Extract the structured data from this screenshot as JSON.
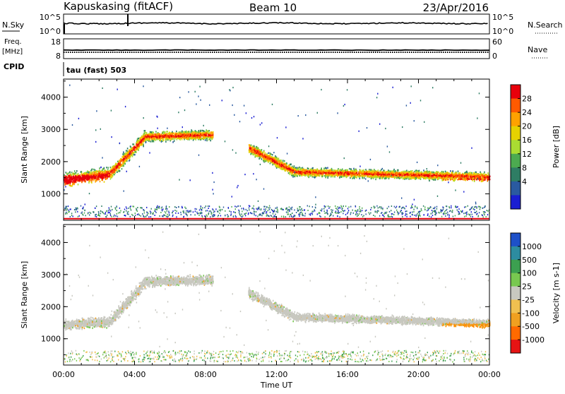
{
  "header": {
    "station": "Kapuskasing (fitACF)",
    "beam": "Beam 10",
    "date": "23/Apr/2016"
  },
  "noise_panel": {
    "left_label": "N.Sky",
    "left_top": "10^5",
    "left_bottom": "10^0",
    "right_top": "10^5",
    "right_bottom": "10^0",
    "right_label": "N.Search"
  },
  "freq_panel": {
    "left_label_1": "Freq.",
    "left_label_2": "[MHz]",
    "left_top": "18",
    "left_bottom": "8",
    "right_top": "60",
    "right_bottom": "0",
    "right_label": "Nave",
    "cpid_label": "CPID",
    "mode_text": "tau (fast) 503"
  },
  "chart_data": [
    {
      "type": "heatmap",
      "title": "Power",
      "ylabel": "Slant Range [km]",
      "ylim": [
        180,
        4560
      ],
      "yticks": [
        "1000",
        "2000",
        "3000",
        "4000"
      ],
      "xlim_hours": [
        0,
        24
      ],
      "colorbar_label": "Power [dB]",
      "colorbar_ticks": [
        "28",
        "24",
        "20",
        "16",
        "12",
        "8",
        "4"
      ],
      "colorbar_colors": [
        "#e8000b",
        "#ff5a00",
        "#ffa200",
        "#e6d200",
        "#aadc32",
        "#4caa50",
        "#2e7d64",
        "#2a5aa0",
        "#1a1ed2"
      ],
      "echo_bands": [
        {
          "start": 0.0,
          "end": 0.6,
          "range_start": 1450,
          "range_end": 1500,
          "width": 300
        },
        {
          "start": 0.6,
          "end": 2.6,
          "range_start": 1500,
          "range_end": 1650,
          "width": 260
        },
        {
          "start": 2.6,
          "end": 4.6,
          "range_start": 1650,
          "range_end": 2800,
          "width": 260
        },
        {
          "start": 4.6,
          "end": 8.4,
          "range_start": 2800,
          "range_end": 2850,
          "width": 200
        },
        {
          "start": 10.4,
          "end": 13.0,
          "range_start": 2450,
          "range_end": 1700,
          "width": 220
        },
        {
          "start": 13.0,
          "end": 24.0,
          "range_start": 1700,
          "range_end": 1550,
          "width": 180
        }
      ]
    },
    {
      "type": "heatmap",
      "title": "Velocity",
      "ylabel": "Slant Range [km]",
      "ylim": [
        180,
        4560
      ],
      "yticks": [
        "1000",
        "2000",
        "3000",
        "4000"
      ],
      "xlim_hours": [
        0,
        24
      ],
      "xticks": [
        "00:00",
        "04:00",
        "08:00",
        "12:00",
        "16:00",
        "20:00",
        "00:00"
      ],
      "xlabel": "Time UT",
      "colorbar_label": "Velocity [m s-1]",
      "colorbar_ticks": [
        "1000",
        "500",
        "100",
        "25",
        "-25",
        "-100",
        "-500",
        "-1000"
      ],
      "colorbar_colors": [
        "#1e50c8",
        "#2d8ca0",
        "#3ca050",
        "#78c850",
        "#c8c8c0",
        "#f0c050",
        "#f0a020",
        "#ff6a00",
        "#e61414"
      ],
      "echo_bands": [
        {
          "start": 0.0,
          "end": 2.6,
          "range_start": 1450,
          "range_end": 1550,
          "width": 200
        },
        {
          "start": 2.6,
          "end": 4.6,
          "range_start": 1550,
          "range_end": 2800,
          "width": 240
        },
        {
          "start": 4.6,
          "end": 8.4,
          "range_start": 2800,
          "range_end": 2850,
          "width": 200
        },
        {
          "start": 10.4,
          "end": 13.0,
          "range_start": 2450,
          "range_end": 1700,
          "width": 200
        },
        {
          "start": 13.0,
          "end": 24.0,
          "range_start": 1700,
          "range_end": 1500,
          "width": 160
        }
      ]
    }
  ]
}
